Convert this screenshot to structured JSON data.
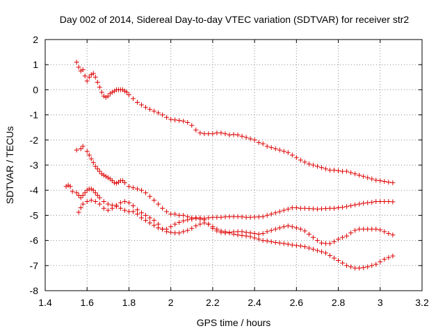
{
  "chart_data": {
    "type": "scatter",
    "title": "Day 002 of 2014, Sidereal Day-to-day VTEC variation (SDTVAR) for receiver str2",
    "xlabel": "GPS time / hours",
    "ylabel": "SDTVAR / TECUs",
    "xlim": [
      1.4,
      3.2
    ],
    "ylim": [
      -8,
      2
    ],
    "xticks": [
      1.4,
      1.6,
      1.8,
      2.0,
      2.2,
      2.4,
      2.6,
      2.8,
      3.0,
      3.2
    ],
    "xtick_labels": [
      "1.4",
      "1.6",
      "1.8",
      "2",
      "2.2",
      "2.4",
      "2.6",
      "2.8",
      "3",
      "3.2"
    ],
    "yticks": [
      -8,
      -7,
      -6,
      -5,
      -4,
      -3,
      -2,
      -1,
      0,
      1,
      2
    ],
    "ytick_labels": [
      "-8",
      "-7",
      "-6",
      "-5",
      "-4",
      "-3",
      "-2",
      "-1",
      "0",
      "1",
      "2"
    ],
    "grid": true,
    "marker": "+",
    "color": "#dd0000",
    "series": [
      {
        "name": "series-1",
        "x": [
          1.55,
          1.56,
          1.57,
          1.58,
          1.59,
          1.6,
          1.61,
          1.62,
          1.63,
          1.64,
          1.65,
          1.66,
          1.67,
          1.68,
          1.69,
          1.7,
          1.71,
          1.72,
          1.73,
          1.74,
          1.75,
          1.76,
          1.77,
          1.78,
          1.79,
          1.8,
          1.82,
          1.84,
          1.86,
          1.88,
          1.9,
          1.92,
          1.94,
          1.96,
          1.98,
          2.0,
          2.02,
          2.04,
          2.06,
          2.08,
          2.1,
          2.12,
          2.14,
          2.16,
          2.18,
          2.2,
          2.22,
          2.24,
          2.26,
          2.28,
          2.3,
          2.32,
          2.34,
          2.36,
          2.38,
          2.4,
          2.42,
          2.44,
          2.46,
          2.48,
          2.5,
          2.52,
          2.54,
          2.56,
          2.58,
          2.6,
          2.62,
          2.64,
          2.66,
          2.68,
          2.7,
          2.72,
          2.74,
          2.76,
          2.78,
          2.8,
          2.82,
          2.84,
          2.86,
          2.88,
          2.9,
          2.92,
          2.94,
          2.96,
          2.98,
          3.0,
          3.02,
          3.04,
          3.06
        ],
        "y": [
          1.1,
          0.9,
          0.75,
          0.8,
          0.55,
          0.35,
          0.5,
          0.6,
          0.65,
          0.5,
          0.3,
          0.1,
          -0.1,
          -0.25,
          -0.3,
          -0.25,
          -0.15,
          -0.1,
          -0.05,
          0.0,
          0.0,
          0.0,
          0.0,
          -0.05,
          -0.1,
          -0.2,
          -0.35,
          -0.5,
          -0.6,
          -0.7,
          -0.78,
          -0.85,
          -0.92,
          -1.0,
          -1.1,
          -1.18,
          -1.2,
          -1.22,
          -1.25,
          -1.3,
          -1.42,
          -1.6,
          -1.72,
          -1.75,
          -1.75,
          -1.75,
          -1.72,
          -1.72,
          -1.75,
          -1.8,
          -1.78,
          -1.8,
          -1.85,
          -1.9,
          -1.95,
          -2.0,
          -2.1,
          -2.15,
          -2.25,
          -2.3,
          -2.35,
          -2.4,
          -2.45,
          -2.5,
          -2.6,
          -2.7,
          -2.8,
          -2.88,
          -2.95,
          -3.0,
          -3.05,
          -3.1,
          -3.15,
          -3.2,
          -3.2,
          -3.22,
          -3.25,
          -3.25,
          -3.3,
          -3.35,
          -3.4,
          -3.45,
          -3.5,
          -3.55,
          -3.6,
          -3.62,
          -3.65,
          -3.68,
          -3.7
        ]
      },
      {
        "name": "series-2",
        "x": [
          1.55,
          1.57,
          1.58,
          1.6,
          1.61,
          1.62,
          1.63,
          1.64,
          1.65,
          1.66,
          1.67,
          1.68,
          1.69,
          1.7,
          1.71,
          1.72,
          1.73,
          1.74,
          1.75,
          1.76,
          1.77,
          1.78,
          1.8,
          1.82,
          1.84,
          1.86,
          1.88,
          1.9,
          1.92,
          1.94,
          1.96,
          1.98,
          2.0,
          2.02,
          2.04,
          2.06,
          2.08,
          2.1,
          2.12,
          2.14,
          2.16,
          2.18,
          2.2,
          2.22,
          2.24,
          2.26,
          2.28,
          2.3,
          2.32,
          2.34,
          2.36,
          2.38,
          2.4,
          2.42,
          2.44,
          2.46,
          2.48,
          2.5,
          2.52,
          2.54,
          2.56,
          2.58,
          2.6,
          2.62,
          2.64,
          2.66,
          2.68,
          2.7,
          2.72,
          2.74,
          2.76,
          2.78,
          2.8,
          2.82,
          2.84,
          2.86,
          2.88,
          2.9,
          2.92,
          2.94,
          2.96,
          2.98,
          3.0,
          3.02,
          3.04,
          3.06
        ],
        "y": [
          -2.4,
          -2.35,
          -2.25,
          -2.45,
          -2.6,
          -2.75,
          -2.9,
          -3.05,
          -3.15,
          -3.25,
          -3.35,
          -3.4,
          -3.45,
          -3.5,
          -3.55,
          -3.62,
          -3.7,
          -3.72,
          -3.68,
          -3.62,
          -3.62,
          -3.7,
          -3.85,
          -3.9,
          -3.95,
          -4.0,
          -4.1,
          -4.25,
          -4.4,
          -4.55,
          -4.72,
          -4.85,
          -4.95,
          -4.95,
          -5.0,
          -5.0,
          -5.05,
          -5.1,
          -5.12,
          -5.15,
          -5.12,
          -5.1,
          -5.08,
          -5.08,
          -5.08,
          -5.06,
          -5.05,
          -5.05,
          -5.05,
          -5.06,
          -5.08,
          -5.08,
          -5.07,
          -5.06,
          -5.05,
          -5.0,
          -4.95,
          -4.9,
          -4.85,
          -4.8,
          -4.75,
          -4.7,
          -4.7,
          -4.72,
          -4.72,
          -4.73,
          -4.74,
          -4.75,
          -4.74,
          -4.73,
          -4.72,
          -4.72,
          -4.7,
          -4.68,
          -4.65,
          -4.62,
          -4.58,
          -4.55,
          -4.52,
          -4.5,
          -4.48,
          -4.45,
          -4.45,
          -4.45,
          -4.45,
          -4.46
        ]
      },
      {
        "name": "series-3",
        "x": [
          1.5,
          1.51,
          1.52,
          1.53,
          1.55,
          1.56,
          1.57,
          1.58,
          1.59,
          1.6,
          1.61,
          1.62,
          1.63,
          1.64,
          1.65,
          1.66,
          1.68,
          1.7,
          1.72,
          1.74,
          1.76,
          1.78,
          1.8,
          1.82,
          1.84,
          1.86,
          1.88,
          1.9,
          1.92,
          1.94,
          1.96,
          1.98,
          2.0,
          2.02,
          2.04,
          2.06,
          2.08,
          2.1,
          2.12,
          2.14,
          2.16,
          2.18,
          2.2,
          2.22,
          2.24,
          2.26,
          2.28,
          2.3,
          2.32,
          2.34,
          2.36,
          2.38,
          2.4,
          2.42,
          2.44,
          2.46,
          2.48,
          2.5,
          2.52,
          2.54,
          2.56,
          2.58,
          2.6,
          2.62,
          2.64,
          2.66,
          2.68,
          2.7,
          2.72,
          2.74,
          2.76,
          2.78,
          2.8,
          2.82,
          2.84,
          2.86,
          2.88,
          2.9,
          2.92,
          2.94,
          2.96,
          2.98,
          3.0,
          3.02,
          3.04,
          3.06
        ],
        "y": [
          -3.85,
          -3.8,
          -3.85,
          -4.05,
          -4.1,
          -4.2,
          -4.3,
          -4.2,
          -4.1,
          -4.0,
          -3.95,
          -3.95,
          -4.0,
          -4.1,
          -4.2,
          -4.3,
          -4.45,
          -4.55,
          -4.6,
          -4.65,
          -4.72,
          -4.8,
          -4.85,
          -4.85,
          -4.95,
          -5.1,
          -5.2,
          -5.3,
          -5.4,
          -5.5,
          -5.55,
          -5.55,
          -5.45,
          -5.35,
          -5.28,
          -5.22,
          -5.18,
          -5.15,
          -5.1,
          -5.1,
          -5.18,
          -5.35,
          -5.52,
          -5.62,
          -5.68,
          -5.7,
          -5.68,
          -5.66,
          -5.65,
          -5.65,
          -5.68,
          -5.7,
          -5.72,
          -5.75,
          -5.72,
          -5.65,
          -5.6,
          -5.55,
          -5.5,
          -5.45,
          -5.42,
          -5.45,
          -5.5,
          -5.55,
          -5.62,
          -5.75,
          -5.88,
          -6.0,
          -6.1,
          -6.12,
          -6.12,
          -6.05,
          -5.95,
          -5.88,
          -5.82,
          -5.7,
          -5.6,
          -5.55,
          -5.55,
          -5.55,
          -5.55,
          -5.55,
          -5.58,
          -5.65,
          -5.72,
          -5.78
        ]
      },
      {
        "name": "series-4",
        "x": [
          1.56,
          1.57,
          1.58,
          1.6,
          1.62,
          1.64,
          1.66,
          1.68,
          1.7,
          1.72,
          1.74,
          1.76,
          1.78,
          1.8,
          1.82,
          1.84,
          1.86,
          1.88,
          1.9,
          1.92,
          1.94,
          1.96,
          1.98,
          2.0,
          2.02,
          2.04,
          2.06,
          2.08,
          2.1,
          2.12,
          2.14,
          2.16,
          2.18,
          2.2,
          2.22,
          2.24,
          2.26,
          2.28,
          2.3,
          2.32,
          2.34,
          2.36,
          2.38,
          2.4,
          2.42,
          2.44,
          2.46,
          2.48,
          2.5,
          2.52,
          2.54,
          2.56,
          2.58,
          2.6,
          2.62,
          2.64,
          2.66,
          2.68,
          2.7,
          2.72,
          2.74,
          2.76,
          2.78,
          2.8,
          2.82,
          2.84,
          2.86,
          2.88,
          2.9,
          2.92,
          2.94,
          2.96,
          2.98,
          3.0,
          3.02,
          3.04,
          3.06
        ],
        "y": [
          -4.88,
          -4.7,
          -4.55,
          -4.45,
          -4.4,
          -4.45,
          -4.55,
          -4.72,
          -4.8,
          -4.72,
          -4.6,
          -4.5,
          -4.45,
          -4.5,
          -4.62,
          -4.78,
          -4.9,
          -5.0,
          -5.1,
          -5.2,
          -5.35,
          -5.55,
          -5.65,
          -5.68,
          -5.7,
          -5.7,
          -5.65,
          -5.6,
          -5.52,
          -5.42,
          -5.35,
          -5.3,
          -5.35,
          -5.45,
          -5.55,
          -5.62,
          -5.65,
          -5.7,
          -5.75,
          -5.78,
          -5.8,
          -5.82,
          -5.85,
          -5.9,
          -5.95,
          -6.0,
          -6.02,
          -6.05,
          -6.08,
          -6.1,
          -6.12,
          -6.15,
          -6.18,
          -6.2,
          -6.22,
          -6.25,
          -6.3,
          -6.35,
          -6.4,
          -6.45,
          -6.5,
          -6.6,
          -6.7,
          -6.8,
          -6.9,
          -7.0,
          -7.05,
          -7.1,
          -7.1,
          -7.08,
          -7.05,
          -7.0,
          -6.95,
          -6.85,
          -6.75,
          -6.68,
          -6.62
        ]
      }
    ]
  }
}
